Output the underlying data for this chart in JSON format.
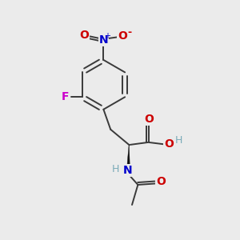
{
  "background_color": "#ebebeb",
  "atom_colors": {
    "C": "#1a1a1a",
    "N_nitro": "#0000cc",
    "N_amine": "#0000cc",
    "O": "#cc0000",
    "F": "#cc00cc",
    "H": "#7aabb8",
    "O_neg": "#cc0000"
  },
  "bond_color": "#3a3a3a",
  "bond_width": 1.4,
  "figsize": [
    3.0,
    3.0
  ],
  "dpi": 100
}
